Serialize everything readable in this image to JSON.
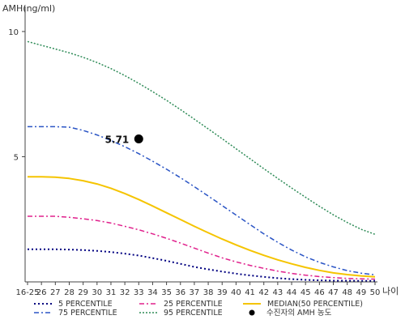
{
  "chart_data": {
    "type": "line",
    "ylabel": "AMH(ng/ml)",
    "xlabel": "나이",
    "yticks": [
      5,
      10
    ],
    "ylim": [
      0,
      11
    ],
    "categories": [
      "16-25",
      "26",
      "27",
      "28",
      "29",
      "30",
      "31",
      "32",
      "33",
      "34",
      "35",
      "36",
      "37",
      "38",
      "39",
      "40",
      "41",
      "42",
      "43",
      "44",
      "45",
      "46",
      "47",
      "48",
      "49",
      "50"
    ],
    "series": [
      {
        "name": "5 PERCENTILE",
        "color": "#000080",
        "dash": "2,3",
        "width": 2,
        "values": [
          1.3,
          1.3,
          1.3,
          1.29,
          1.27,
          1.24,
          1.19,
          1.13,
          1.05,
          0.95,
          0.84,
          0.72,
          0.6,
          0.5,
          0.41,
          0.33,
          0.26,
          0.2,
          0.15,
          0.11,
          0.08,
          0.06,
          0.05,
          0.05,
          0.04,
          0.04
        ]
      },
      {
        "name": "25 PERCENTILE",
        "color": "#e0208c",
        "dash": "6,3,2,3",
        "width": 1.5,
        "values": [
          2.62,
          2.62,
          2.62,
          2.58,
          2.52,
          2.45,
          2.35,
          2.22,
          2.08,
          1.92,
          1.74,
          1.55,
          1.35,
          1.15,
          0.96,
          0.8,
          0.66,
          0.54,
          0.43,
          0.34,
          0.27,
          0.21,
          0.17,
          0.14,
          0.12,
          0.11
        ]
      },
      {
        "name": "MEDIAN(50 PERCENTILE)",
        "color": "#f5c400",
        "dash": "",
        "width": 2,
        "values": [
          4.2,
          4.2,
          4.18,
          4.13,
          4.04,
          3.91,
          3.74,
          3.53,
          3.29,
          3.03,
          2.76,
          2.49,
          2.22,
          1.96,
          1.71,
          1.48,
          1.26,
          1.06,
          0.88,
          0.72,
          0.58,
          0.46,
          0.36,
          0.29,
          0.24,
          0.2
        ]
      },
      {
        "name": "75 PERCENTILE",
        "color": "#2b55c5",
        "dash": "6,3,2,3",
        "width": 1.5,
        "values": [
          6.2,
          6.2,
          6.2,
          6.18,
          6.05,
          5.87,
          5.65,
          5.4,
          5.12,
          4.82,
          4.5,
          4.16,
          3.8,
          3.43,
          3.05,
          2.67,
          2.29,
          1.92,
          1.58,
          1.27,
          1.0,
          0.78,
          0.6,
          0.45,
          0.35,
          0.28
        ]
      },
      {
        "name": "95 PERCENTILE",
        "color": "#2e8b57",
        "dash": "2,2",
        "width": 1.5,
        "values": [
          9.6,
          9.45,
          9.3,
          9.15,
          8.97,
          8.76,
          8.52,
          8.24,
          7.93,
          7.6,
          7.25,
          6.88,
          6.5,
          6.11,
          5.72,
          5.32,
          4.92,
          4.52,
          4.13,
          3.75,
          3.38,
          3.02,
          2.68,
          2.37,
          2.1,
          1.9
        ]
      }
    ],
    "point": {
      "name": "수진자의 AMH 농도",
      "x": "33",
      "y": 5.71,
      "label": "5.71",
      "color": "#000000"
    }
  }
}
